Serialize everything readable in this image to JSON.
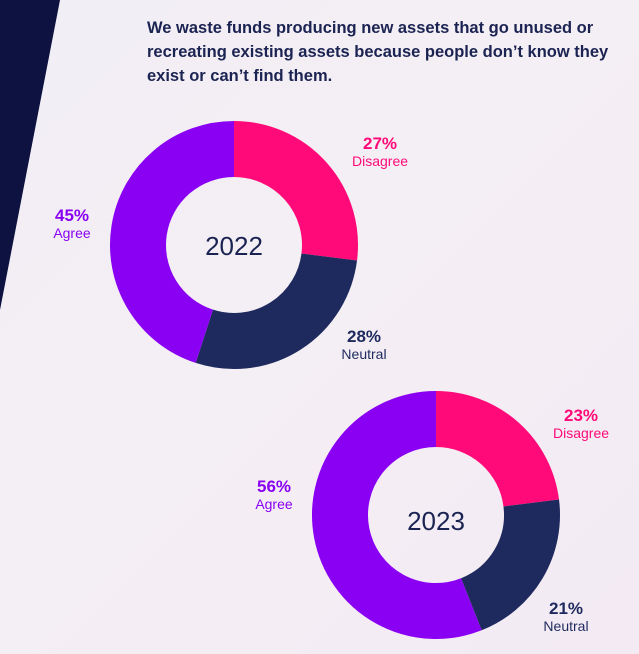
{
  "headline": "We waste funds producing new assets that go unused or recreating existing assets because people don’t know they exist or can’t find them.",
  "colors": {
    "background": "#f3eef4",
    "stripe": "#0d1240",
    "agree": "#8a00f2",
    "disagree": "#ff0a78",
    "neutral": "#1e2a5e",
    "text": "#1b2352"
  },
  "chart_data": [
    {
      "type": "pie",
      "variant": "donut",
      "center_label": "2022",
      "categories": [
        "Disagree",
        "Neutral",
        "Agree"
      ],
      "values": [
        27,
        28,
        45
      ],
      "labels": [
        {
          "pct": "27%",
          "name": "Disagree"
        },
        {
          "pct": "28%",
          "name": "Neutral"
        },
        {
          "pct": "45%",
          "name": "Agree"
        }
      ]
    },
    {
      "type": "pie",
      "variant": "donut",
      "center_label": "2023",
      "categories": [
        "Disagree",
        "Neutral",
        "Agree"
      ],
      "values": [
        23,
        21,
        56
      ],
      "labels": [
        {
          "pct": "23%",
          "name": "Disagree"
        },
        {
          "pct": "21%",
          "name": "Neutral"
        },
        {
          "pct": "56%",
          "name": "Agree"
        }
      ]
    }
  ]
}
